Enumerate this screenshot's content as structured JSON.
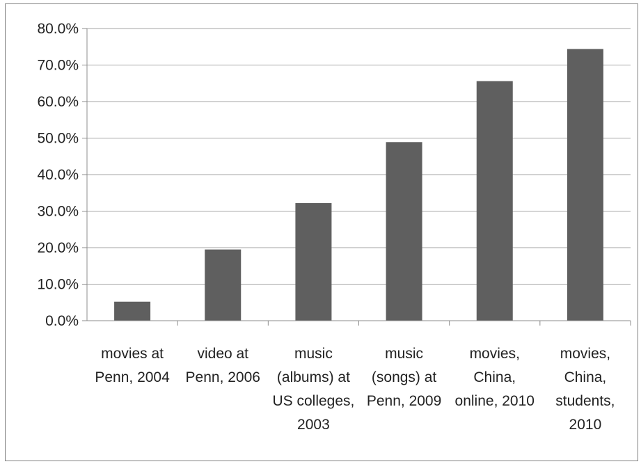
{
  "chart_data": {
    "type": "bar",
    "title": "",
    "xlabel": "",
    "ylabel": "",
    "ylim": [
      0,
      80
    ],
    "y_ticks": [
      "0.0%",
      "10.0%",
      "20.0%",
      "30.0%",
      "40.0%",
      "50.0%",
      "60.0%",
      "70.0%",
      "80.0%"
    ],
    "grid": true,
    "legend": "none",
    "categories": [
      [
        "movies at",
        "Penn, 2004"
      ],
      [
        "video at",
        "Penn, 2006"
      ],
      [
        "music",
        "(albums) at",
        "US colleges,",
        "2003"
      ],
      [
        "music",
        "(songs) at",
        "Penn, 2009"
      ],
      [
        "movies,",
        "China,",
        "online, 2010"
      ],
      [
        "movies,",
        "China,",
        "students,",
        "2010"
      ]
    ],
    "values": [
      5.2,
      19.5,
      32.2,
      48.9,
      65.6,
      74.4
    ],
    "colors": {
      "bar": "#5f5f5f",
      "grid": "#a6a6a6",
      "axis": "#8c8c8c"
    }
  }
}
